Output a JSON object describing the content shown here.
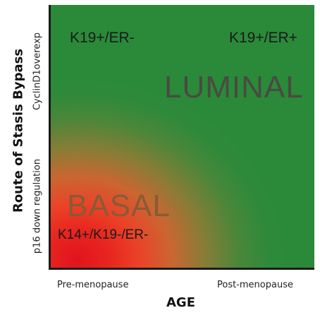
{
  "axes": {
    "y_title": "Route of Stasis Bypass",
    "y_tick_top": "CyclinD1overexp",
    "y_tick_bottom": "p16 down regulation",
    "x_title": "AGE",
    "x_tick_left": "Pre-menopause",
    "x_tick_right": "Post-menopause"
  },
  "regions": {
    "luminal": "LUMINAL",
    "basal": "BASAL"
  },
  "markers": {
    "top_left": "K19+/ER-",
    "top_right": "K19+/ER+",
    "bottom_left": "K14+/K19-/ER-"
  },
  "colors": {
    "luminal_green": "#2a8a3a",
    "basal_red": "#e0141c"
  }
}
